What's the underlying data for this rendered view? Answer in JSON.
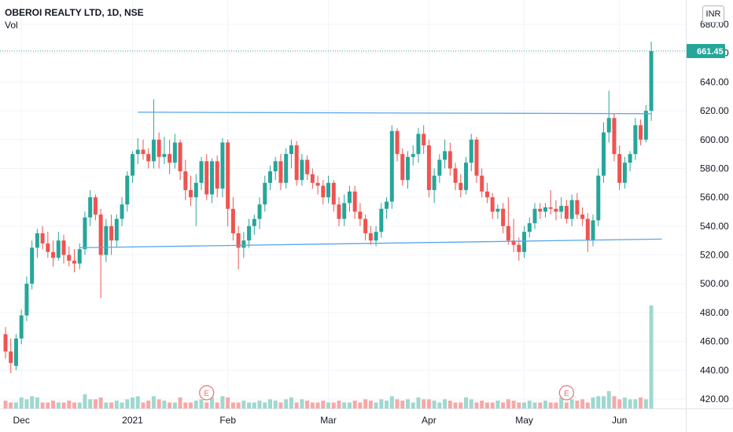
{
  "header": {
    "title": "OBEROI REALTY LTD, 1D, NSE",
    "volume_label": "Vol",
    "currency_badge": "INR"
  },
  "colors": {
    "up": "#26a69a",
    "down": "#ef5350",
    "vol_up": "#9fd8d0",
    "vol_down": "#f7a9a7",
    "trendline": "#5aa6ee",
    "last_price_bg": "#26a69a",
    "earnings": "#e57373"
  },
  "last_price_label": "661.45",
  "earnings_marker_label": "E",
  "chart_data": {
    "type": "candlestick",
    "title": "OBEROI REALTY LTD, 1D, NSE",
    "ylim": [
      410,
      690
    ],
    "yticks": [
      420,
      440,
      460,
      480,
      500,
      520,
      540,
      560,
      580,
      600,
      620,
      640,
      660,
      680
    ],
    "ytick_labels": [
      "420.00",
      "440.00",
      "460.00",
      "480.00",
      "500.00",
      "520.00",
      "540.00",
      "560.00",
      "580.00",
      "600.00",
      "620.00",
      "640.00",
      "660.00",
      "680.00"
    ],
    "xticks": [
      {
        "label": "Dec",
        "index": 3
      },
      {
        "label": "2021",
        "index": 24
      },
      {
        "label": "Feb",
        "index": 42
      },
      {
        "label": "Mar",
        "index": 61
      },
      {
        "label": "Apr",
        "index": 80
      },
      {
        "label": "May",
        "index": 98
      },
      {
        "label": "Jun",
        "index": 116
      }
    ],
    "last_price": 661.45,
    "trendlines": [
      {
        "from_index": 25,
        "from_price": 619,
        "to_index": 122,
        "to_price": 618
      },
      {
        "from_index": 14,
        "from_price": 525,
        "to_index": 124,
        "to_price": 531
      }
    ],
    "earnings_markers": [
      38,
      106
    ],
    "grid": true,
    "candles": [
      [
        465,
        470,
        448,
        453,
        1
      ],
      [
        453,
        462,
        438,
        445,
        1
      ],
      [
        443,
        465,
        440,
        462,
        1
      ],
      [
        462,
        482,
        458,
        478,
        2
      ],
      [
        478,
        505,
        474,
        500,
        2
      ],
      [
        500,
        530,
        496,
        525,
        3
      ],
      [
        525,
        538,
        518,
        535,
        2
      ],
      [
        535,
        540,
        524,
        528,
        1
      ],
      [
        528,
        536,
        518,
        522,
        1
      ],
      [
        522,
        530,
        512,
        518,
        1
      ],
      [
        518,
        536,
        516,
        530,
        1
      ],
      [
        530,
        534,
        514,
        520,
        1
      ],
      [
        520,
        526,
        512,
        516,
        1
      ],
      [
        516,
        524,
        508,
        514,
        1
      ],
      [
        514,
        528,
        510,
        524,
        1
      ],
      [
        524,
        550,
        520,
        546,
        3
      ],
      [
        546,
        565,
        540,
        560,
        2
      ],
      [
        560,
        562,
        544,
        548,
        2
      ],
      [
        548,
        552,
        490,
        520,
        2
      ],
      [
        520,
        545,
        515,
        540,
        1
      ],
      [
        540,
        548,
        520,
        530,
        1
      ],
      [
        530,
        548,
        525,
        545,
        1
      ],
      [
        545,
        560,
        540,
        555,
        1
      ],
      [
        555,
        578,
        550,
        575,
        2
      ],
      [
        575,
        592,
        570,
        590,
        2
      ],
      [
        590,
        601,
        583,
        593,
        3
      ],
      [
        593,
        600,
        586,
        590,
        1
      ],
      [
        590,
        594,
        580,
        585,
        1
      ],
      [
        585,
        628,
        580,
        600,
        3
      ],
      [
        600,
        605,
        580,
        588,
        2
      ],
      [
        588,
        602,
        583,
        590,
        1
      ],
      [
        590,
        600,
        576,
        584,
        1
      ],
      [
        584,
        604,
        580,
        598,
        1
      ],
      [
        598,
        600,
        572,
        578,
        2
      ],
      [
        578,
        586,
        558,
        565,
        1
      ],
      [
        565,
        575,
        554,
        560,
        1
      ],
      [
        560,
        576,
        540,
        570,
        1
      ],
      [
        570,
        588,
        565,
        585,
        2
      ],
      [
        585,
        590,
        558,
        562,
        1
      ],
      [
        562,
        587,
        556,
        585,
        2
      ],
      [
        585,
        589,
        560,
        566,
        1
      ],
      [
        566,
        601,
        560,
        598,
        3
      ],
      [
        598,
        600,
        540,
        552,
        2
      ],
      [
        552,
        560,
        530,
        535,
        1
      ],
      [
        535,
        540,
        510,
        525,
        1
      ],
      [
        525,
        536,
        518,
        530,
        1
      ],
      [
        530,
        545,
        525,
        540,
        1
      ],
      [
        540,
        548,
        534,
        545,
        1
      ],
      [
        545,
        560,
        538,
        555,
        1
      ],
      [
        555,
        575,
        550,
        570,
        1
      ],
      [
        570,
        582,
        565,
        578,
        2
      ],
      [
        578,
        588,
        572,
        585,
        1
      ],
      [
        585,
        590,
        565,
        570,
        1
      ],
      [
        570,
        594,
        566,
        590,
        2
      ],
      [
        590,
        600,
        580,
        596,
        2
      ],
      [
        596,
        599,
        568,
        572,
        1
      ],
      [
        572,
        590,
        568,
        586,
        2
      ],
      [
        586,
        589,
        572,
        576,
        1
      ],
      [
        576,
        580,
        566,
        570,
        1
      ],
      [
        570,
        575,
        562,
        568,
        1
      ],
      [
        568,
        572,
        555,
        560,
        1
      ],
      [
        560,
        575,
        556,
        570,
        1
      ],
      [
        570,
        572,
        550,
        555,
        1
      ],
      [
        555,
        560,
        540,
        545,
        1
      ],
      [
        545,
        562,
        540,
        556,
        1
      ],
      [
        556,
        568,
        550,
        564,
        1
      ],
      [
        564,
        568,
        545,
        550,
        1
      ],
      [
        550,
        556,
        540,
        545,
        1
      ],
      [
        545,
        548,
        530,
        535,
        2
      ],
      [
        535,
        540,
        527,
        530,
        1
      ],
      [
        530,
        540,
        526,
        536,
        1
      ],
      [
        536,
        556,
        532,
        552,
        2
      ],
      [
        552,
        560,
        545,
        557,
        1
      ],
      [
        557,
        610,
        552,
        606,
        3
      ],
      [
        606,
        608,
        585,
        590,
        2
      ],
      [
        590,
        594,
        568,
        572,
        1
      ],
      [
        572,
        592,
        566,
        588,
        2
      ],
      [
        588,
        596,
        582,
        590,
        1
      ],
      [
        590,
        608,
        584,
        604,
        2
      ],
      [
        604,
        610,
        590,
        596,
        2
      ],
      [
        596,
        600,
        560,
        565,
        2
      ],
      [
        565,
        580,
        556,
        575,
        1
      ],
      [
        575,
        590,
        570,
        586,
        1
      ],
      [
        586,
        600,
        580,
        592,
        2
      ],
      [
        592,
        598,
        575,
        580,
        1
      ],
      [
        580,
        584,
        565,
        570,
        1
      ],
      [
        570,
        576,
        560,
        565,
        1
      ],
      [
        565,
        588,
        562,
        584,
        2
      ],
      [
        584,
        604,
        578,
        600,
        2
      ],
      [
        600,
        602,
        570,
        575,
        1
      ],
      [
        575,
        580,
        560,
        564,
        1
      ],
      [
        564,
        570,
        556,
        560,
        1
      ],
      [
        560,
        563,
        545,
        550,
        1
      ],
      [
        550,
        555,
        545,
        552,
        1
      ],
      [
        552,
        556,
        535,
        540,
        1
      ],
      [
        540,
        560,
        527,
        530,
        2
      ],
      [
        530,
        545,
        522,
        527,
        1
      ],
      [
        527,
        532,
        516,
        522,
        1
      ],
      [
        522,
        540,
        518,
        536,
        1
      ],
      [
        536,
        546,
        532,
        542,
        1
      ],
      [
        542,
        556,
        538,
        552,
        1
      ],
      [
        552,
        556,
        545,
        550,
        1
      ],
      [
        550,
        556,
        546,
        553,
        1
      ],
      [
        553,
        565,
        548,
        552,
        1
      ],
      [
        552,
        558,
        544,
        550,
        1
      ],
      [
        550,
        560,
        545,
        554,
        2
      ],
      [
        554,
        558,
        542,
        545,
        1
      ],
      [
        545,
        562,
        540,
        558,
        2
      ],
      [
        558,
        563,
        545,
        548,
        1
      ],
      [
        548,
        553,
        540,
        545,
        2
      ],
      [
        545,
        549,
        522,
        530,
        1
      ],
      [
        530,
        548,
        526,
        544,
        2
      ],
      [
        544,
        580,
        540,
        575,
        3
      ],
      [
        575,
        612,
        570,
        605,
        3
      ],
      [
        605,
        634,
        598,
        615,
        4
      ],
      [
        615,
        618,
        585,
        590,
        3
      ],
      [
        590,
        596,
        565,
        570,
        2
      ],
      [
        570,
        588,
        566,
        584,
        2
      ],
      [
        584,
        592,
        578,
        590,
        2
      ],
      [
        590,
        615,
        586,
        610,
        2
      ],
      [
        610,
        614,
        596,
        600,
        2
      ],
      [
        600,
        624,
        598,
        620,
        2
      ],
      [
        620,
        668,
        613,
        661.45,
        7
      ]
    ]
  }
}
